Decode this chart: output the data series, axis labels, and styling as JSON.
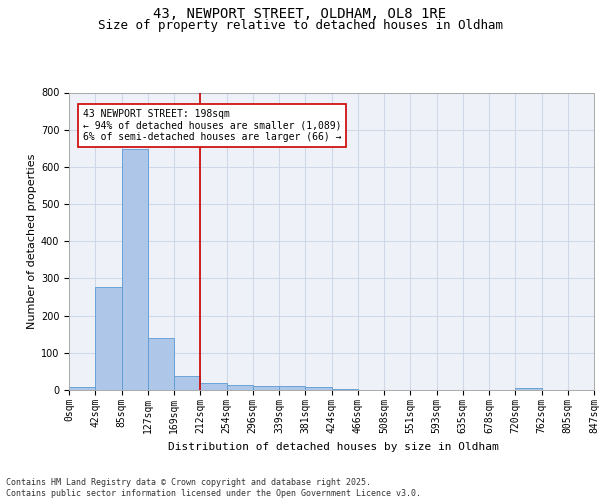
{
  "title_line1": "43, NEWPORT STREET, OLDHAM, OL8 1RE",
  "title_line2": "Size of property relative to detached houses in Oldham",
  "xlabel": "Distribution of detached houses by size in Oldham",
  "ylabel": "Number of detached properties",
  "bar_values": [
    7,
    277,
    648,
    141,
    38,
    18,
    13,
    10,
    10,
    8,
    3,
    0,
    0,
    0,
    0,
    0,
    0,
    5,
    0,
    0
  ],
  "bar_labels": [
    "0sqm",
    "42sqm",
    "85sqm",
    "127sqm",
    "169sqm",
    "212sqm",
    "254sqm",
    "296sqm",
    "339sqm",
    "381sqm",
    "424sqm",
    "466sqm",
    "508sqm",
    "551sqm",
    "593sqm",
    "635sqm",
    "678sqm",
    "720sqm",
    "762sqm",
    "805sqm",
    "847sqm"
  ],
  "bar_color": "#aec6e8",
  "bar_edge_color": "#5b9bd5",
  "grid_color": "#d0d8e8",
  "background_color": "#eef2f8",
  "vline_x": 4.5,
  "vline_color": "#cc0000",
  "annotation_text": "43 NEWPORT STREET: 198sqm\n← 94% of detached houses are smaller (1,089)\n6% of semi-detached houses are larger (66) →",
  "annotation_box_color": "#ffffff",
  "annotation_box_edge": "#cc0000",
  "ylim": [
    0,
    800
  ],
  "yticks": [
    0,
    100,
    200,
    300,
    400,
    500,
    600,
    700,
    800
  ],
  "footer_text": "Contains HM Land Registry data © Crown copyright and database right 2025.\nContains public sector information licensed under the Open Government Licence v3.0.",
  "title_fontsize": 10,
  "subtitle_fontsize": 9,
  "axis_label_fontsize": 8,
  "tick_fontsize": 7,
  "annotation_fontsize": 7,
  "footer_fontsize": 6
}
